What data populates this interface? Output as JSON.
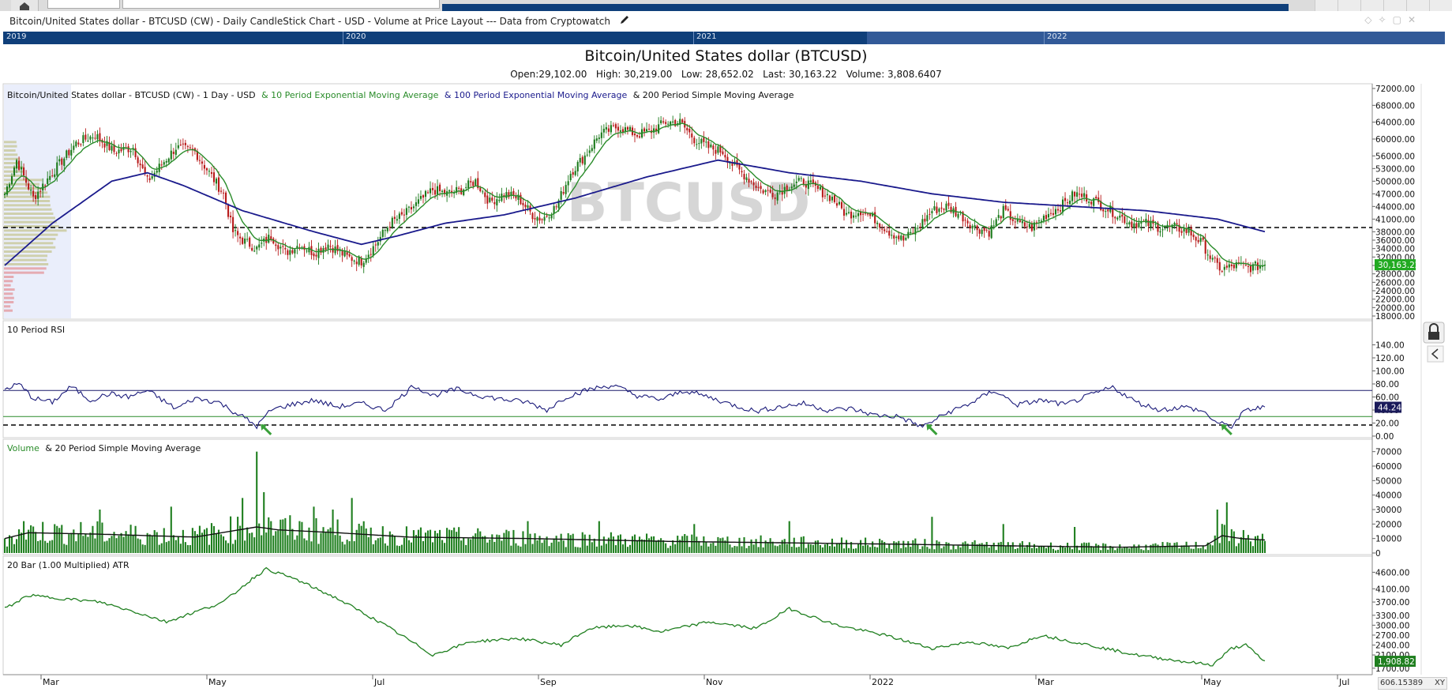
{
  "header": {
    "chart_description": "Bitcoin/United States dollar - BTCUSD (CW) - Daily CandleStick Chart - USD - Volume at Price Layout --- Data from Cryptowatch",
    "title": "Bitcoin/United States dollar (BTCUSD)",
    "ohlc": {
      "open": "Open:29,102.00",
      "high": "High: 30,219.00",
      "low": "Low: 28,652.02",
      "last": "Last: 30,163.22",
      "volume": "Volume: 3,808.6407"
    }
  },
  "timeline": {
    "years": [
      "2019",
      "2020",
      "2021",
      "2022"
    ]
  },
  "icons": [
    "home-icon",
    "edit-icon",
    "lock-icon",
    "collapse-icon"
  ],
  "colors": {
    "candle_up": "#1b7a1b",
    "candle_down": "#b81a1a",
    "ema10": "#2a8c2a",
    "ema100": "#1a1a8c",
    "sma200": "#111111",
    "rsi": "#1a1a7a",
    "volume": "#1f7f1f",
    "atr": "#1f7f1f",
    "last_badge": "#22aa22"
  },
  "scroll_value": "606.15389",
  "zoom_label": "XY",
  "chart_data": [
    {
      "type": "candlestick",
      "legend": {
        "base": "Bitcoin/United States dollar - BTCUSD (CW) - 1 Day - USD",
        "ema10": "& 10 Period Exponential Moving Average",
        "ema100": "& 100 Period Exponential Moving Average",
        "sma200": "& 200 Period Simple Moving Average"
      },
      "watermark": "BTCUSD",
      "x_ticks": [
        "Mar",
        "May",
        "Jul",
        "Sep",
        "Nov",
        "2022",
        "Mar",
        "May",
        "Jul"
      ],
      "y_ticks": [
        18000,
        20000,
        22000,
        24000,
        26000,
        28000,
        30000,
        32000,
        34000,
        36000,
        38000,
        41000,
        44000,
        47000,
        50000,
        53000,
        56000,
        60000,
        64000,
        68000,
        72000
      ],
      "y_tick_labels": [
        "18000.00",
        "20000.00",
        "22000.00",
        "24000.00",
        "26000.00",
        "28000.00",
        "30000.00",
        "32000.00",
        "34000.00",
        "36000.00",
        "38000.00",
        "41000.00",
        "44000.00",
        "47000.00",
        "50000.00",
        "53000.00",
        "56000.00",
        "60000.00",
        "64000.00",
        "68000.00",
        "72000.00"
      ],
      "ylim": [
        18000,
        72000
      ],
      "horizontal_line": 39000,
      "last_price": 30163.22,
      "last_label": "30,163.22",
      "close_anchors": [
        [
          0,
          47000
        ],
        [
          5,
          55000
        ],
        [
          12,
          46000
        ],
        [
          20,
          52000
        ],
        [
          30,
          59000
        ],
        [
          38,
          61000
        ],
        [
          46,
          57000
        ],
        [
          54,
          58000
        ],
        [
          60,
          50000
        ],
        [
          66,
          54000
        ],
        [
          72,
          58000
        ],
        [
          80,
          57000
        ],
        [
          86,
          52000
        ],
        [
          92,
          47000
        ],
        [
          96,
          38000
        ],
        [
          100,
          36000
        ],
        [
          106,
          34000
        ],
        [
          112,
          37000
        ],
        [
          118,
          33000
        ],
        [
          124,
          35000
        ],
        [
          130,
          33000
        ],
        [
          136,
          35000
        ],
        [
          144,
          32000
        ],
        [
          150,
          31000
        ],
        [
          156,
          35000
        ],
        [
          162,
          40000
        ],
        [
          168,
          42000
        ],
        [
          174,
          45000
        ],
        [
          180,
          48000
        ],
        [
          186,
          47000
        ],
        [
          192,
          48000
        ],
        [
          198,
          50000
        ],
        [
          204,
          45000
        ],
        [
          210,
          47000
        ],
        [
          216,
          46000
        ],
        [
          222,
          42000
        ],
        [
          226,
          41000
        ],
        [
          232,
          44000
        ],
        [
          238,
          52000
        ],
        [
          244,
          56000
        ],
        [
          250,
          61000
        ],
        [
          258,
          63000
        ],
        [
          266,
          61000
        ],
        [
          272,
          62000
        ],
        [
          278,
          64000
        ],
        [
          284,
          64000
        ],
        [
          290,
          60000
        ],
        [
          296,
          58000
        ],
        [
          302,
          57000
        ],
        [
          306,
          54000
        ],
        [
          312,
          51000
        ],
        [
          318,
          48000
        ],
        [
          324,
          47000
        ],
        [
          330,
          49000
        ],
        [
          336,
          50000
        ],
        [
          342,
          48000
        ],
        [
          348,
          46000
        ],
        [
          354,
          42000
        ],
        [
          360,
          43000
        ],
        [
          366,
          41000
        ],
        [
          372,
          38000
        ],
        [
          378,
          36000
        ],
        [
          384,
          39000
        ],
        [
          390,
          43000
        ],
        [
          396,
          44000
        ],
        [
          402,
          42000
        ],
        [
          408,
          39000
        ],
        [
          414,
          38000
        ],
        [
          420,
          43000
        ],
        [
          426,
          40000
        ],
        [
          432,
          39000
        ],
        [
          438,
          42000
        ],
        [
          444,
          44000
        ],
        [
          450,
          47000
        ],
        [
          456,
          46000
        ],
        [
          462,
          44000
        ],
        [
          468,
          42000
        ],
        [
          474,
          40000
        ],
        [
          480,
          40000
        ],
        [
          486,
          39000
        ],
        [
          492,
          39000
        ],
        [
          498,
          38000
        ],
        [
          504,
          35000
        ],
        [
          508,
          31000
        ],
        [
          512,
          29000
        ],
        [
          518,
          30000
        ],
        [
          524,
          29500
        ],
        [
          530,
          30163
        ]
      ],
      "ema100_anchors": [
        [
          0,
          30000
        ],
        [
          20,
          40000
        ],
        [
          45,
          50000
        ],
        [
          60,
          52000
        ],
        [
          75,
          49000
        ],
        [
          100,
          43000
        ],
        [
          130,
          38000
        ],
        [
          150,
          35000
        ],
        [
          165,
          37000
        ],
        [
          185,
          40000
        ],
        [
          210,
          42000
        ],
        [
          240,
          46000
        ],
        [
          270,
          51000
        ],
        [
          300,
          55000
        ],
        [
          330,
          52000
        ],
        [
          360,
          50000
        ],
        [
          390,
          47000
        ],
        [
          420,
          45000
        ],
        [
          450,
          44000
        ],
        [
          480,
          43000
        ],
        [
          510,
          41000
        ],
        [
          530,
          38000
        ]
      ]
    },
    {
      "type": "line",
      "title": "10 Period RSI",
      "y_ticks": [
        0,
        20,
        40,
        60,
        80,
        100,
        120,
        140
      ],
      "y_tick_labels": [
        "0.00",
        "20.00",
        "40.00",
        "60.00",
        "80.00",
        "100.00",
        "120.00",
        "140.00"
      ],
      "ylim": [
        0,
        160
      ],
      "overbought": 70,
      "oversold": 30,
      "dashed_line": 17,
      "last_value": 44.24,
      "last_label": "44.24",
      "anchors": [
        [
          0,
          72
        ],
        [
          6,
          80
        ],
        [
          12,
          58
        ],
        [
          20,
          52
        ],
        [
          28,
          76
        ],
        [
          36,
          55
        ],
        [
          44,
          65
        ],
        [
          52,
          60
        ],
        [
          60,
          70
        ],
        [
          66,
          56
        ],
        [
          72,
          42
        ],
        [
          80,
          58
        ],
        [
          90,
          52
        ],
        [
          96,
          38
        ],
        [
          100,
          30
        ],
        [
          106,
          15
        ],
        [
          112,
          40
        ],
        [
          120,
          48
        ],
        [
          130,
          55
        ],
        [
          140,
          45
        ],
        [
          150,
          50
        ],
        [
          160,
          40
        ],
        [
          166,
          58
        ],
        [
          172,
          78
        ],
        [
          180,
          62
        ],
        [
          190,
          72
        ],
        [
          200,
          62
        ],
        [
          210,
          56
        ],
        [
          220,
          52
        ],
        [
          228,
          40
        ],
        [
          236,
          60
        ],
        [
          246,
          72
        ],
        [
          256,
          78
        ],
        [
          266,
          62
        ],
        [
          276,
          56
        ],
        [
          286,
          70
        ],
        [
          296,
          60
        ],
        [
          306,
          48
        ],
        [
          316,
          38
        ],
        [
          326,
          45
        ],
        [
          336,
          50
        ],
        [
          346,
          40
        ],
        [
          356,
          42
        ],
        [
          366,
          32
        ],
        [
          376,
          30
        ],
        [
          386,
          14
        ],
        [
          396,
          35
        ],
        [
          406,
          50
        ],
        [
          416,
          70
        ],
        [
          426,
          48
        ],
        [
          436,
          55
        ],
        [
          446,
          48
        ],
        [
          456,
          62
        ],
        [
          466,
          75
        ],
        [
          476,
          52
        ],
        [
          486,
          40
        ],
        [
          496,
          45
        ],
        [
          504,
          38
        ],
        [
          510,
          20
        ],
        [
          516,
          15
        ],
        [
          522,
          40
        ],
        [
          530,
          44
        ]
      ],
      "arrows_at": [
        108,
        388,
        512
      ]
    },
    {
      "type": "bar",
      "title": "Volume",
      "overlay": "& 20 Period Simple Moving Average",
      "y_ticks": [
        0,
        10000,
        20000,
        30000,
        40000,
        50000,
        60000,
        70000
      ],
      "y_tick_labels": [
        "0",
        "10000",
        "20000",
        "30000",
        "40000",
        "50000",
        "60000",
        "70000"
      ],
      "ylim": [
        0,
        72000
      ],
      "spikes": [
        [
          8,
          22000
        ],
        [
          40,
          30000
        ],
        [
          70,
          32000
        ],
        [
          100,
          38000
        ],
        [
          106,
          70000
        ],
        [
          109,
          42000
        ],
        [
          112,
          22000
        ],
        [
          130,
          32000
        ],
        [
          138,
          30000
        ],
        [
          146,
          38000
        ],
        [
          220,
          22000
        ],
        [
          250,
          22000
        ],
        [
          290,
          20000
        ],
        [
          330,
          22000
        ],
        [
          390,
          25000
        ],
        [
          420,
          20000
        ],
        [
          450,
          18000
        ],
        [
          510,
          30000
        ],
        [
          514,
          35000
        ]
      ],
      "sma_anchors": [
        [
          0,
          10000
        ],
        [
          10,
          14000
        ],
        [
          40,
          13000
        ],
        [
          80,
          11000
        ],
        [
          106,
          18000
        ],
        [
          115,
          16000
        ],
        [
          140,
          14000
        ],
        [
          170,
          11000
        ],
        [
          220,
          10000
        ],
        [
          280,
          8000
        ],
        [
          330,
          7000
        ],
        [
          380,
          6000
        ],
        [
          420,
          5000
        ],
        [
          470,
          4000
        ],
        [
          505,
          5000
        ],
        [
          512,
          12000
        ],
        [
          520,
          10000
        ],
        [
          530,
          9000
        ]
      ]
    },
    {
      "type": "line",
      "title": "20 Bar (1.00 Multiplied) ATR",
      "y_ticks": [
        1700,
        2100,
        2400,
        2700,
        3000,
        3300,
        3700,
        4100,
        4600
      ],
      "y_tick_labels": [
        "1700.00",
        "2100.00",
        "2400.00",
        "2700.00",
        "3000.00",
        "3300.00",
        "3700.00",
        "4100.00",
        "4600.00"
      ],
      "ylim": [
        1600,
        4800
      ],
      "last_value": 1908.82,
      "last_label": "1,908.82",
      "anchors": [
        [
          0,
          3500
        ],
        [
          10,
          3900
        ],
        [
          25,
          3800
        ],
        [
          40,
          3700
        ],
        [
          55,
          3400
        ],
        [
          68,
          3100
        ],
        [
          80,
          3400
        ],
        [
          92,
          3700
        ],
        [
          104,
          4400
        ],
        [
          110,
          4700
        ],
        [
          122,
          4400
        ],
        [
          140,
          3800
        ],
        [
          160,
          3000
        ],
        [
          180,
          2100
        ],
        [
          196,
          2500
        ],
        [
          216,
          2600
        ],
        [
          234,
          2400
        ],
        [
          246,
          2900
        ],
        [
          262,
          3000
        ],
        [
          276,
          2800
        ],
        [
          296,
          3100
        ],
        [
          316,
          2900
        ],
        [
          330,
          3500
        ],
        [
          350,
          3000
        ],
        [
          370,
          2700
        ],
        [
          390,
          2300
        ],
        [
          406,
          2500
        ],
        [
          422,
          2300
        ],
        [
          436,
          2700
        ],
        [
          456,
          2400
        ],
        [
          476,
          2100
        ],
        [
          496,
          1900
        ],
        [
          508,
          1800
        ],
        [
          516,
          2300
        ],
        [
          522,
          2400
        ],
        [
          530,
          1900
        ]
      ]
    }
  ]
}
